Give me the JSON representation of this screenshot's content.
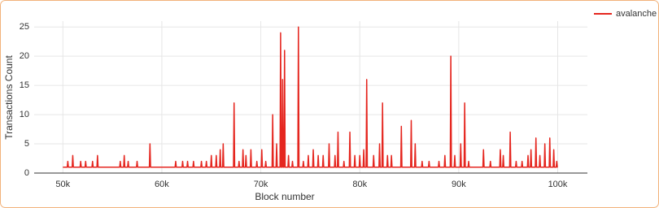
{
  "chart_data": {
    "type": "line",
    "x_label": "Block number",
    "y_label": "Transactions Count",
    "xlim": [
      47100,
      103000
    ],
    "ylim": [
      0,
      26
    ],
    "xticks": [
      {
        "value": 50000,
        "label": "50k"
      },
      {
        "value": 60000,
        "label": "60k"
      },
      {
        "value": 70000,
        "label": "70k"
      },
      {
        "value": 80000,
        "label": "80k"
      },
      {
        "value": 90000,
        "label": "90k"
      },
      {
        "value": 100000,
        "label": "100k"
      }
    ],
    "yticks": [
      0,
      5,
      10,
      15,
      20,
      25
    ],
    "grid": true,
    "legend": "top-right",
    "x": [
      50000,
      50440,
      50500,
      50560,
      50940,
      51000,
      51060,
      51740,
      51800,
      51860,
      52240,
      52300,
      52360,
      52940,
      53000,
      53060,
      53440,
      53500,
      53560,
      55740,
      55800,
      55860,
      56140,
      56200,
      56260,
      56540,
      56600,
      56660,
      57440,
      57500,
      57560,
      58740,
      58800,
      58860,
      61340,
      61400,
      61460,
      62040,
      62100,
      62160,
      62540,
      62600,
      62660,
      63140,
      63200,
      63260,
      63940,
      64000,
      64060,
      64440,
      64500,
      64560,
      64940,
      65000,
      65060,
      65440,
      65500,
      65560,
      65840,
      65900,
      65960,
      66140,
      66200,
      66260,
      67240,
      67300,
      67360,
      67740,
      67800,
      67860,
      68140,
      68200,
      68260,
      68440,
      68500,
      68560,
      68940,
      69000,
      69060,
      69540,
      69600,
      69660,
      70040,
      70100,
      70160,
      70440,
      70500,
      70560,
      71140,
      71200,
      71260,
      71540,
      71600,
      71660,
      71940,
      72000,
      72060,
      72140,
      72200,
      72260,
      72340,
      72400,
      72460,
      72740,
      72800,
      72860,
      73140,
      73200,
      73260,
      73740,
      73800,
      73860,
      74240,
      74300,
      74360,
      74740,
      74800,
      74860,
      75240,
      75300,
      75360,
      75740,
      75800,
      75860,
      76240,
      76300,
      76360,
      76840,
      76900,
      76960,
      77440,
      77500,
      77560,
      77740,
      77800,
      77860,
      78340,
      78400,
      78460,
      78940,
      79000,
      79060,
      79440,
      79500,
      79560,
      79940,
      80000,
      80060,
      80340,
      80400,
      80460,
      80640,
      80700,
      80760,
      81340,
      81400,
      81460,
      81940,
      82000,
      82060,
      82240,
      82300,
      82360,
      82740,
      82800,
      82860,
      83140,
      83200,
      83260,
      84140,
      84200,
      84260,
      85140,
      85200,
      85260,
      85540,
      85600,
      85660,
      86240,
      86300,
      86360,
      86940,
      87000,
      87060,
      87940,
      88000,
      88060,
      88540,
      88600,
      88660,
      89140,
      89200,
      89260,
      89540,
      89600,
      89660,
      90140,
      90200,
      90260,
      90540,
      90600,
      90660,
      90940,
      91000,
      91060,
      92440,
      92500,
      92560,
      93140,
      93200,
      93260,
      94140,
      94200,
      94260,
      94440,
      94500,
      94560,
      95140,
      95200,
      95260,
      95740,
      95800,
      95860,
      96340,
      96400,
      96460,
      96940,
      97000,
      97060,
      97240,
      97300,
      97360,
      97740,
      97800,
      97860,
      98140,
      98200,
      98260,
      98640,
      98700,
      98760,
      99140,
      99200,
      99260,
      99540,
      99600,
      99660,
      99840,
      99900,
      99960,
      100000
    ],
    "series": [
      {
        "name": "avalanche",
        "color": "#e5261f",
        "values": [
          1,
          1,
          2,
          1,
          1,
          3,
          1,
          1,
          2,
          1,
          1,
          2,
          1,
          1,
          2,
          1,
          1,
          3,
          1,
          1,
          2,
          1,
          1,
          3,
          1,
          1,
          2,
          1,
          1,
          2,
          1,
          1,
          5,
          1,
          1,
          2,
          1,
          1,
          2,
          1,
          1,
          2,
          1,
          1,
          2,
          1,
          1,
          2,
          1,
          1,
          2,
          1,
          1,
          3,
          1,
          1,
          3,
          1,
          1,
          4,
          1,
          1,
          5,
          1,
          1,
          12,
          1,
          1,
          2,
          1,
          1,
          4,
          1,
          1,
          3,
          1,
          1,
          4,
          1,
          1,
          2,
          1,
          1,
          4,
          1,
          1,
          2,
          1,
          1,
          10,
          1,
          1,
          5,
          1,
          1,
          24,
          1,
          1,
          16,
          1,
          1,
          21,
          1,
          1,
          3,
          1,
          1,
          2,
          1,
          1,
          25,
          1,
          1,
          2,
          1,
          1,
          3,
          1,
          1,
          4,
          1,
          1,
          3,
          1,
          1,
          3,
          1,
          1,
          5,
          1,
          1,
          3,
          1,
          1,
          7,
          1,
          1,
          2,
          1,
          1,
          7,
          1,
          1,
          3,
          1,
          1,
          3,
          1,
          1,
          4,
          1,
          1,
          16,
          1,
          1,
          3,
          1,
          1,
          5,
          1,
          1,
          12,
          1,
          1,
          3,
          1,
          1,
          3,
          1,
          1,
          8,
          1,
          1,
          9,
          1,
          1,
          5,
          1,
          1,
          2,
          1,
          1,
          2,
          1,
          1,
          2,
          1,
          1,
          3,
          1,
          1,
          20,
          1,
          1,
          3,
          1,
          1,
          5,
          1,
          1,
          12,
          1,
          1,
          2,
          1,
          1,
          4,
          1,
          1,
          2,
          1,
          1,
          4,
          1,
          1,
          3,
          1,
          1,
          7,
          1,
          1,
          2,
          1,
          1,
          2,
          1,
          1,
          3,
          1,
          1,
          4,
          1,
          1,
          6,
          1,
          1,
          3,
          1,
          1,
          5,
          1,
          1,
          6,
          1,
          1,
          4,
          1,
          1,
          2,
          1,
          1
        ]
      }
    ]
  }
}
